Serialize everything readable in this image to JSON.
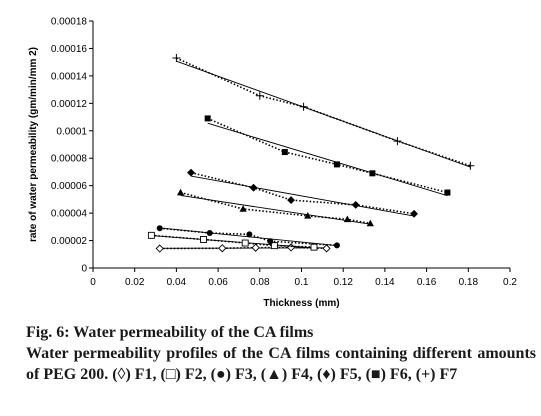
{
  "chart_data": {
    "type": "scatter",
    "xlabel": "Thickness (mm)",
    "ylabel": "rate of water permeability (gm/min/mm 2)",
    "xlim": [
      0,
      0.2
    ],
    "ylim": [
      0,
      0.00018
    ],
    "x_ticks": [
      "0",
      "0.02",
      "0.04",
      "0.06",
      "0.08",
      "0.1",
      "0.12",
      "0.14",
      "0.16",
      "0.18",
      "0.2"
    ],
    "y_ticks": [
      "0",
      "0.00002",
      "0.00004",
      "0.00006",
      "0.00008",
      "0.0001",
      "0.00012",
      "0.00014",
      "0.00016",
      "0.00018"
    ],
    "grid": false,
    "legend": "none",
    "series": [
      {
        "marker": "diamond-open",
        "x": [
          0.032,
          0.062,
          0.078,
          0.095,
          0.112
        ],
        "y": [
          1.42e-05,
          1.44e-05,
          1.48e-05,
          1.5e-05,
          1.43e-05
        ]
      },
      {
        "marker": "square-open",
        "x": [
          0.028,
          0.053,
          0.073,
          0.087,
          0.106
        ],
        "y": [
          2.38e-05,
          2.08e-05,
          1.82e-05,
          1.63e-05,
          1.52e-05
        ]
      },
      {
        "marker": "circle",
        "x": [
          0.032,
          0.056,
          0.075,
          0.085,
          0.117
        ],
        "y": [
          2.9e-05,
          2.55e-05,
          2.45e-05,
          1.95e-05,
          1.65e-05
        ]
      },
      {
        "marker": "triangle",
        "x": [
          0.042,
          0.072,
          0.103,
          0.122,
          0.133
        ],
        "y": [
          5.5e-05,
          4.3e-05,
          3.8e-05,
          3.55e-05,
          3.25e-05
        ]
      },
      {
        "marker": "diamond",
        "x": [
          0.047,
          0.077,
          0.095,
          0.126,
          0.154
        ],
        "y": [
          6.95e-05,
          5.85e-05,
          4.95e-05,
          4.6e-05,
          3.95e-05
        ]
      },
      {
        "marker": "square",
        "x": [
          0.055,
          0.092,
          0.117,
          0.134,
          0.17
        ],
        "y": [
          0.000109,
          8.45e-05,
          7.55e-05,
          6.9e-05,
          5.5e-05
        ]
      },
      {
        "marker": "plus",
        "x": [
          0.04,
          0.08,
          0.101,
          0.146,
          0.181
        ],
        "y": [
          0.000153,
          0.0001255,
          0.0001175,
          9.25e-05,
          7.45e-05
        ]
      }
    ]
  },
  "caption": {
    "title": "Fig. 6: Water permeability of the CA films",
    "body": "Water permeability profiles of the CA films containing different amounts of PEG 200. (◊) F1, (□) F2, (●) F3, (▲) F4, (♦) F5, (■) F6, (+) F7"
  }
}
